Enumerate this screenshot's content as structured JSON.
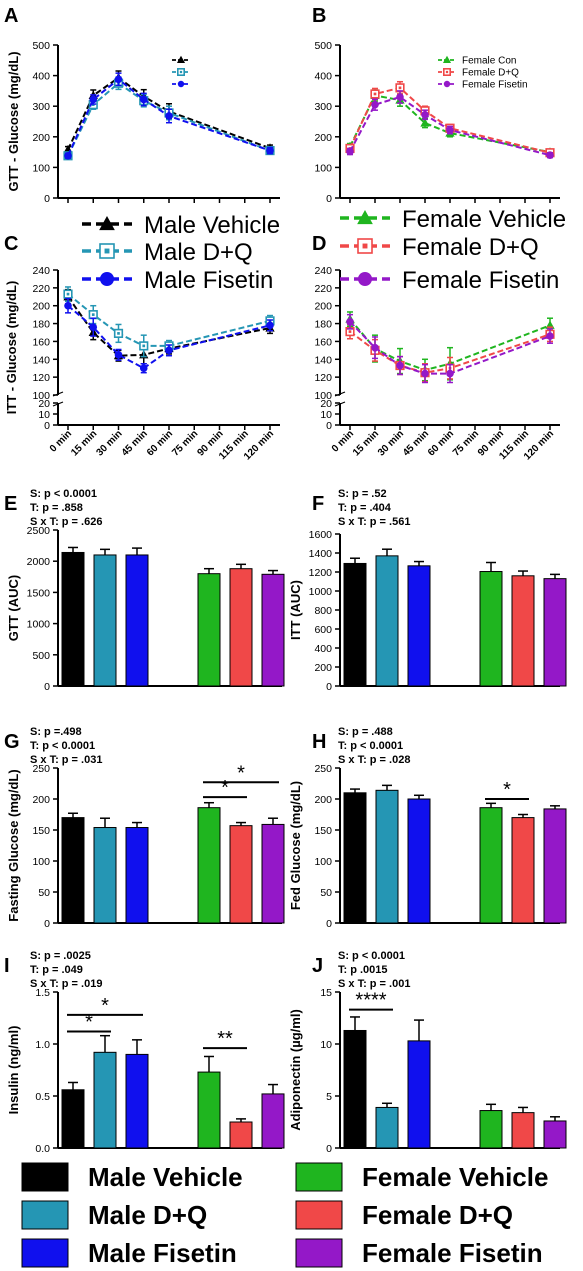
{
  "colors": {
    "male_vehicle": "#000000",
    "male_dq": "#2596b4",
    "male_fisetin": "#1010ee",
    "female_vehicle": "#1fb51f",
    "female_dq": "#f04848",
    "female_fisetin": "#9418c8"
  },
  "bottom_legend": [
    {
      "label": "Male Vehicle",
      "color_key": "male_vehicle"
    },
    {
      "label": "Female Vehicle",
      "color_key": "female_vehicle"
    },
    {
      "label": "Male D+Q",
      "color_key": "male_dq"
    },
    {
      "label": "Female D+Q",
      "color_key": "female_dq"
    },
    {
      "label": "Male Fisetin",
      "color_key": "male_fisetin"
    },
    {
      "label": "Female Fisetin",
      "color_key": "female_fisetin"
    }
  ],
  "chart_data": [
    {
      "panel": "A",
      "type": "line",
      "ylabel": "GTT - Glucose (mg/dL)",
      "ylim": [
        0,
        500
      ],
      "yticks": [
        0,
        100,
        200,
        300,
        400,
        500
      ],
      "x_categories": [
        "0 min",
        "15 min",
        "30 min",
        "45 min",
        "60 min",
        "75 min",
        "90 min",
        "115 min",
        "120 min"
      ],
      "x_labels_shown": false,
      "legend": {
        "labels": [
          "",
          "",
          ""
        ],
        "placement": "top-right"
      },
      "series": [
        {
          "name": "Male Vehicle",
          "color_key": "male_vehicle",
          "marker": "triangle",
          "x_index": [
            0,
            1,
            2,
            3,
            4,
            8
          ],
          "values": [
            158,
            335,
            393,
            332,
            283,
            163
          ],
          "err": [
            10,
            18,
            22,
            22,
            25,
            10
          ]
        },
        {
          "name": "Male D+Q",
          "color_key": "male_dq",
          "marker": "square",
          "x_index": [
            0,
            1,
            2,
            3,
            4,
            8
          ],
          "values": [
            138,
            305,
            375,
            318,
            278,
            155
          ],
          "err": [
            8,
            15,
            20,
            20,
            22,
            10
          ]
        },
        {
          "name": "Male Fisetin",
          "color_key": "male_fisetin",
          "marker": "circle",
          "x_index": [
            0,
            1,
            2,
            3,
            4,
            8
          ],
          "values": [
            138,
            322,
            388,
            322,
            268,
            155
          ],
          "err": [
            8,
            15,
            20,
            20,
            22,
            10
          ]
        }
      ]
    },
    {
      "panel": "B",
      "type": "line",
      "ylabel": "",
      "ylim": [
        0,
        500
      ],
      "yticks": [
        0,
        100,
        200,
        300,
        400,
        500
      ],
      "x_categories": [
        "0 min",
        "15 min",
        "30 min",
        "45 min",
        "60 min",
        "75 min",
        "90 min",
        "115 min",
        "120 min"
      ],
      "x_labels_shown": false,
      "legend": {
        "labels": [
          "Female Con",
          "Female D+Q",
          "Female Fisetin"
        ],
        "placement": "top-right"
      },
      "series": [
        {
          "name": "Female Con",
          "color_key": "female_vehicle",
          "marker": "triangle",
          "x_index": [
            0,
            1,
            2,
            3,
            4,
            8
          ],
          "values": [
            168,
            335,
            320,
            245,
            212,
            150
          ],
          "err": [
            10,
            18,
            20,
            15,
            12,
            8
          ]
        },
        {
          "name": "Female D+Q",
          "color_key": "female_dq",
          "marker": "square",
          "x_index": [
            0,
            1,
            2,
            3,
            4,
            8
          ],
          "values": [
            162,
            340,
            360,
            285,
            228,
            148
          ],
          "err": [
            10,
            18,
            20,
            15,
            12,
            8
          ]
        },
        {
          "name": "Female Fisetin",
          "color_key": "female_fisetin",
          "marker": "circle",
          "x_index": [
            0,
            1,
            2,
            3,
            4,
            8
          ],
          "values": [
            152,
            305,
            330,
            272,
            222,
            140
          ],
          "err": [
            10,
            18,
            20,
            15,
            12,
            8
          ]
        }
      ]
    },
    {
      "panel": "C",
      "type": "line",
      "ylabel": "ITT - Glucose (mg/dL)",
      "ylim": [
        0,
        240
      ],
      "axis_break": [
        20,
        100
      ],
      "yticks": [
        0,
        10,
        20,
        100,
        120,
        140,
        160,
        180,
        200,
        220,
        240
      ],
      "x_categories": [
        "0 min",
        "15 min",
        "30 min",
        "45 min",
        "60 min",
        "75 min",
        "90 min",
        "115 min",
        "120 min"
      ],
      "x_labels_shown": true,
      "legend": {
        "labels": [
          "Male Vehicle",
          "Male D+Q",
          "Male Fisetin"
        ],
        "placement": "above"
      },
      "series": [
        {
          "name": "Male Vehicle",
          "color_key": "male_vehicle",
          "marker": "triangle",
          "x_index": [
            0,
            1,
            2,
            3,
            4,
            8
          ],
          "values": [
            210,
            170,
            144,
            145,
            152,
            175
          ],
          "err": [
            8,
            8,
            6,
            10,
            6,
            6
          ]
        },
        {
          "name": "Male D+Q",
          "color_key": "male_dq",
          "marker": "square",
          "x_index": [
            0,
            1,
            2,
            3,
            4,
            8
          ],
          "values": [
            213,
            190,
            169,
            155,
            155,
            183
          ],
          "err": [
            8,
            10,
            10,
            12,
            6,
            6
          ]
        },
        {
          "name": "Male Fisetin",
          "color_key": "male_fisetin",
          "marker": "circle",
          "x_index": [
            0,
            1,
            2,
            3,
            4,
            8
          ],
          "values": [
            200,
            176,
            145,
            130,
            150,
            178
          ],
          "err": [
            8,
            10,
            6,
            5,
            6,
            6
          ]
        }
      ]
    },
    {
      "panel": "D",
      "type": "line",
      "ylabel": "",
      "ylim": [
        0,
        240
      ],
      "axis_break": [
        20,
        100
      ],
      "yticks": [
        0,
        10,
        20,
        100,
        120,
        140,
        160,
        180,
        200,
        220,
        240
      ],
      "x_categories": [
        "0 min",
        "15 min",
        "30 min",
        "45 min",
        "60 min",
        "75 min",
        "90 min",
        "115 min",
        "120 min"
      ],
      "x_labels_shown": true,
      "legend": {
        "labels": [
          "Female Vehicle",
          "Female D+Q",
          "Female Fisetin"
        ],
        "placement": "above"
      },
      "series": [
        {
          "name": "Female Vehicle",
          "color_key": "female_vehicle",
          "marker": "triangle",
          "x_index": [
            0,
            1,
            2,
            3,
            4,
            8
          ],
          "values": [
            185,
            152,
            138,
            128,
            135,
            178
          ],
          "err": [
            8,
            15,
            14,
            12,
            18,
            8
          ]
        },
        {
          "name": "Female D+Q",
          "color_key": "female_dq",
          "marker": "square",
          "x_index": [
            0,
            1,
            2,
            3,
            4,
            8
          ],
          "values": [
            171,
            150,
            133,
            125,
            130,
            168
          ],
          "err": [
            8,
            12,
            10,
            10,
            12,
            8
          ]
        },
        {
          "name": "Female Fisetin",
          "color_key": "female_fisetin",
          "marker": "circle",
          "x_index": [
            0,
            1,
            2,
            3,
            4,
            8
          ],
          "values": [
            182,
            153,
            133,
            124,
            124,
            166
          ],
          "err": [
            8,
            12,
            10,
            10,
            10,
            8
          ]
        }
      ]
    },
    {
      "panel": "E",
      "type": "bar",
      "ylabel": "GTT (AUC)",
      "ylim": [
        0,
        2500
      ],
      "yticks": [
        0,
        500,
        1000,
        1500,
        2000,
        2500
      ],
      "stats": [
        "S: p < 0.0001",
        "T: p = .858",
        "S x T: p = .626"
      ],
      "bars": [
        {
          "color_key": "male_vehicle",
          "value": 2140,
          "err": 80
        },
        {
          "color_key": "male_dq",
          "value": 2100,
          "err": 90
        },
        {
          "color_key": "male_fisetin",
          "value": 2100,
          "err": 110
        },
        {
          "color_key": "female_vehicle",
          "value": 1800,
          "err": 80
        },
        {
          "color_key": "female_dq",
          "value": 1880,
          "err": 70
        },
        {
          "color_key": "female_fisetin",
          "value": 1790,
          "err": 60
        }
      ],
      "brackets": []
    },
    {
      "panel": "F",
      "type": "bar",
      "ylabel": "ITT (AUC)",
      "ylim": [
        0,
        1600
      ],
      "yticks": [
        0,
        200,
        400,
        600,
        800,
        1000,
        1200,
        1400,
        1600
      ],
      "stats": [
        "S: p = .52",
        "T: p = .404",
        "S x T: p = .561"
      ],
      "bars": [
        {
          "color_key": "male_vehicle",
          "value": 1290,
          "err": 55
        },
        {
          "color_key": "male_dq",
          "value": 1370,
          "err": 70
        },
        {
          "color_key": "male_fisetin",
          "value": 1265,
          "err": 45
        },
        {
          "color_key": "female_vehicle",
          "value": 1205,
          "err": 95
        },
        {
          "color_key": "female_dq",
          "value": 1160,
          "err": 50
        },
        {
          "color_key": "female_fisetin",
          "value": 1130,
          "err": 45
        }
      ],
      "brackets": []
    },
    {
      "panel": "G",
      "type": "bar",
      "ylabel": "Fasting Glucose (mg/dL)",
      "ylim": [
        0,
        250
      ],
      "yticks": [
        0,
        50,
        100,
        150,
        200,
        250
      ],
      "stats": [
        "S: p =.498",
        "T: p < 0.0001",
        "S x T: p = .031"
      ],
      "bars": [
        {
          "color_key": "male_vehicle",
          "value": 170,
          "err": 7
        },
        {
          "color_key": "male_dq",
          "value": 154,
          "err": 15
        },
        {
          "color_key": "male_fisetin",
          "value": 154,
          "err": 8
        },
        {
          "color_key": "female_vehicle",
          "value": 186,
          "err": 8
        },
        {
          "color_key": "female_dq",
          "value": 157,
          "err": 5
        },
        {
          "color_key": "female_fisetin",
          "value": 159,
          "err": 10
        }
      ],
      "brackets": [
        {
          "from": 3,
          "to": 4,
          "y": 203,
          "label": "*"
        },
        {
          "from": 3,
          "to": 5,
          "y": 227,
          "label": "*"
        }
      ]
    },
    {
      "panel": "H",
      "type": "bar",
      "ylabel": "Fed Glucose (mg/dL)",
      "ylim": [
        0,
        250
      ],
      "yticks": [
        0,
        50,
        100,
        150,
        200,
        250
      ],
      "stats": [
        "S: p = .488",
        "T: p < 0.0001",
        "S x T: p = .028"
      ],
      "bars": [
        {
          "color_key": "male_vehicle",
          "value": 210,
          "err": 6
        },
        {
          "color_key": "male_dq",
          "value": 214,
          "err": 8
        },
        {
          "color_key": "male_fisetin",
          "value": 200,
          "err": 6
        },
        {
          "color_key": "female_vehicle",
          "value": 186,
          "err": 7
        },
        {
          "color_key": "female_dq",
          "value": 170,
          "err": 5
        },
        {
          "color_key": "female_fisetin",
          "value": 184,
          "err": 5
        }
      ],
      "brackets": [
        {
          "from": 3,
          "to": 4,
          "y": 200,
          "label": "*"
        }
      ]
    },
    {
      "panel": "I",
      "type": "bar",
      "ylabel": "Insulin (ng/ml)",
      "ylim": [
        0,
        1.5
      ],
      "yticks": [
        0.0,
        0.5,
        1.0,
        1.5
      ],
      "stats": [
        "S: p = .0025",
        "T: p = .049",
        "S x T: p = .019"
      ],
      "bars": [
        {
          "color_key": "male_vehicle",
          "value": 0.56,
          "err": 0.07
        },
        {
          "color_key": "male_dq",
          "value": 0.92,
          "err": 0.16
        },
        {
          "color_key": "male_fisetin",
          "value": 0.9,
          "err": 0.14
        },
        {
          "color_key": "female_vehicle",
          "value": 0.73,
          "err": 0.15
        },
        {
          "color_key": "female_dq",
          "value": 0.25,
          "err": 0.03
        },
        {
          "color_key": "female_fisetin",
          "value": 0.52,
          "err": 0.09
        }
      ],
      "brackets": [
        {
          "from": 0,
          "to": 1,
          "y": 1.12,
          "label": "*"
        },
        {
          "from": 0,
          "to": 2,
          "y": 1.28,
          "label": "*"
        },
        {
          "from": 3,
          "to": 4,
          "y": 0.96,
          "label": "**"
        }
      ]
    },
    {
      "panel": "J",
      "type": "bar",
      "ylabel": "Adiponectin (µg/ml)",
      "ylim": [
        0,
        15
      ],
      "yticks": [
        0,
        5,
        10,
        15
      ],
      "stats": [
        "S: p < 0.0001",
        "T: p .0015",
        "S x T: p = .001"
      ],
      "bars": [
        {
          "color_key": "male_vehicle",
          "value": 11.3,
          "err": 1.3
        },
        {
          "color_key": "male_dq",
          "value": 3.9,
          "err": 0.4
        },
        {
          "color_key": "male_fisetin",
          "value": 10.3,
          "err": 2.0
        },
        {
          "color_key": "female_vehicle",
          "value": 3.6,
          "err": 0.6
        },
        {
          "color_key": "female_dq",
          "value": 3.4,
          "err": 0.5
        },
        {
          "color_key": "female_fisetin",
          "value": 2.6,
          "err": 0.4
        }
      ],
      "brackets": [
        {
          "from": 0,
          "to": 1,
          "y": 13.3,
          "label": "****"
        }
      ]
    }
  ]
}
